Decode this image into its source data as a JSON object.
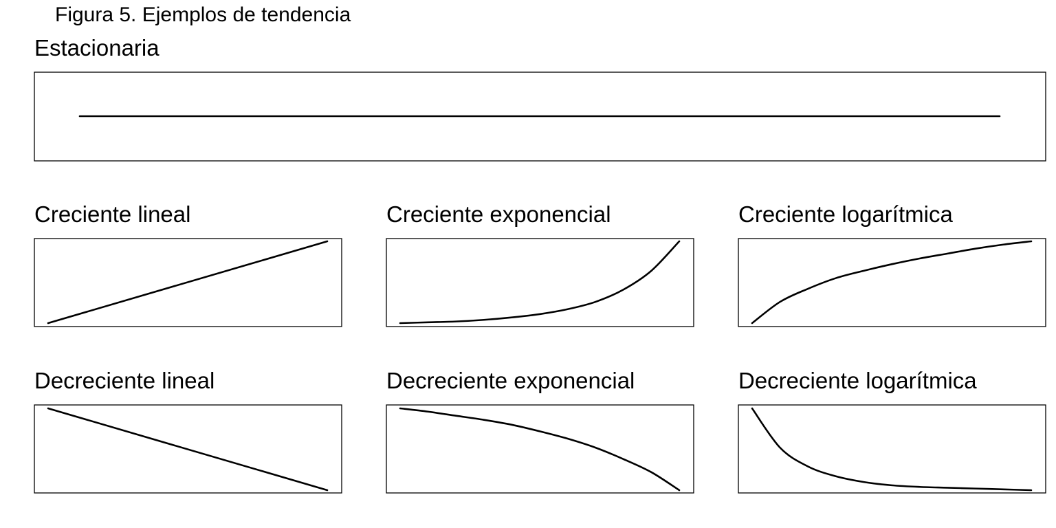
{
  "figure_title": "Figura 5. Ejemplos de tendencia",
  "chart_data": [
    {
      "type": "line",
      "title": "Estacionaria",
      "x": [
        0,
        1
      ],
      "y": [
        0.5,
        0.5
      ],
      "xlim": [
        0,
        1
      ],
      "ylim": [
        0,
        1
      ],
      "axes": false,
      "grid": false,
      "line_color": "#000000"
    },
    {
      "type": "line",
      "title": "Creciente lineal",
      "x": [
        0,
        1
      ],
      "y": [
        0,
        1
      ],
      "xlim": [
        0,
        1
      ],
      "ylim": [
        0,
        1
      ],
      "axes": false,
      "grid": false,
      "line_color": "#000000"
    },
    {
      "type": "line",
      "title": "Creciente exponencial",
      "x": [
        0,
        0.1,
        0.2,
        0.3,
        0.4,
        0.5,
        0.6,
        0.7,
        0.8,
        0.9,
        1.0
      ],
      "y": [
        0.0,
        0.01,
        0.02,
        0.04,
        0.07,
        0.11,
        0.17,
        0.26,
        0.41,
        0.64,
        1.0
      ],
      "xlim": [
        0,
        1
      ],
      "ylim": [
        0,
        1
      ],
      "axes": false,
      "grid": false,
      "line_color": "#000000"
    },
    {
      "type": "line",
      "title": "Creciente logarítmica",
      "x": [
        0,
        0.1,
        0.2,
        0.3,
        0.4,
        0.5,
        0.6,
        0.7,
        0.8,
        0.9,
        1.0
      ],
      "y": [
        0.0,
        0.26,
        0.42,
        0.55,
        0.64,
        0.72,
        0.79,
        0.85,
        0.91,
        0.96,
        1.0
      ],
      "xlim": [
        0,
        1
      ],
      "ylim": [
        0,
        1
      ],
      "axes": false,
      "grid": false,
      "line_color": "#000000"
    },
    {
      "type": "line",
      "title": "Decreciente lineal",
      "x": [
        0,
        1
      ],
      "y": [
        1,
        0
      ],
      "xlim": [
        0,
        1
      ],
      "ylim": [
        0,
        1
      ],
      "axes": false,
      "grid": false,
      "line_color": "#000000"
    },
    {
      "type": "line",
      "title": "Decreciente exponencial",
      "x": [
        0,
        0.1,
        0.2,
        0.3,
        0.4,
        0.5,
        0.6,
        0.7,
        0.8,
        0.9,
        1.0
      ],
      "y": [
        1.0,
        0.96,
        0.91,
        0.86,
        0.8,
        0.72,
        0.63,
        0.52,
        0.38,
        0.22,
        0.0
      ],
      "xlim": [
        0,
        1
      ],
      "ylim": [
        0,
        1
      ],
      "axes": false,
      "grid": false,
      "line_color": "#000000"
    },
    {
      "type": "line",
      "title": "Decreciente logarítmica",
      "x": [
        0,
        0.1,
        0.2,
        0.3,
        0.4,
        0.5,
        0.6,
        0.7,
        0.8,
        0.9,
        1.0
      ],
      "y": [
        1.0,
        0.52,
        0.29,
        0.17,
        0.1,
        0.06,
        0.04,
        0.03,
        0.02,
        0.01,
        0.0
      ],
      "xlim": [
        0,
        1
      ],
      "ylim": [
        0,
        1
      ],
      "axes": false,
      "grid": false,
      "line_color": "#000000"
    }
  ]
}
